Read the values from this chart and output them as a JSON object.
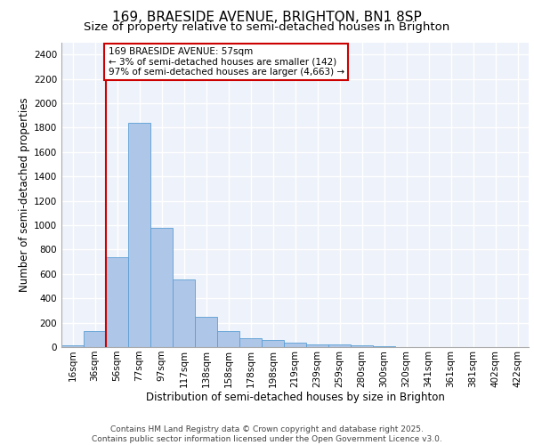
{
  "title1": "169, BRAESIDE AVENUE, BRIGHTON, BN1 8SP",
  "title2": "Size of property relative to semi-detached houses in Brighton",
  "xlabel": "Distribution of semi-detached houses by size in Brighton",
  "ylabel": "Number of semi-detached properties",
  "bar_color": "#aec6e8",
  "bar_edge_color": "#5a9fd4",
  "vline_color": "#cc0000",
  "vline_x_index": 2,
  "annotation_text": "169 BRAESIDE AVENUE: 57sqm\n← 3% of semi-detached houses are smaller (142)\n97% of semi-detached houses are larger (4,663) →",
  "annotation_box_color": "#ffffff",
  "annotation_edge_color": "#cc0000",
  "categories": [
    "16sqm",
    "36sqm",
    "56sqm",
    "77sqm",
    "97sqm",
    "117sqm",
    "138sqm",
    "158sqm",
    "178sqm",
    "198sqm",
    "219sqm",
    "239sqm",
    "259sqm",
    "280sqm",
    "300sqm",
    "320sqm",
    "341sqm",
    "361sqm",
    "381sqm",
    "402sqm",
    "422sqm"
  ],
  "values": [
    15,
    130,
    735,
    1840,
    980,
    555,
    245,
    135,
    75,
    55,
    35,
    25,
    20,
    15,
    5,
    2,
    0,
    0,
    0,
    0,
    0
  ],
  "ylim": [
    0,
    2500
  ],
  "yticks": [
    0,
    200,
    400,
    600,
    800,
    1000,
    1200,
    1400,
    1600,
    1800,
    2000,
    2200,
    2400
  ],
  "background_color": "#eef2fa",
  "grid_color": "#ffffff",
  "footer_text": "Contains HM Land Registry data © Crown copyright and database right 2025.\nContains public sector information licensed under the Open Government Licence v3.0.",
  "title_fontsize": 11,
  "subtitle_fontsize": 9.5,
  "axis_label_fontsize": 8.5,
  "tick_fontsize": 7.5,
  "footer_fontsize": 6.5
}
